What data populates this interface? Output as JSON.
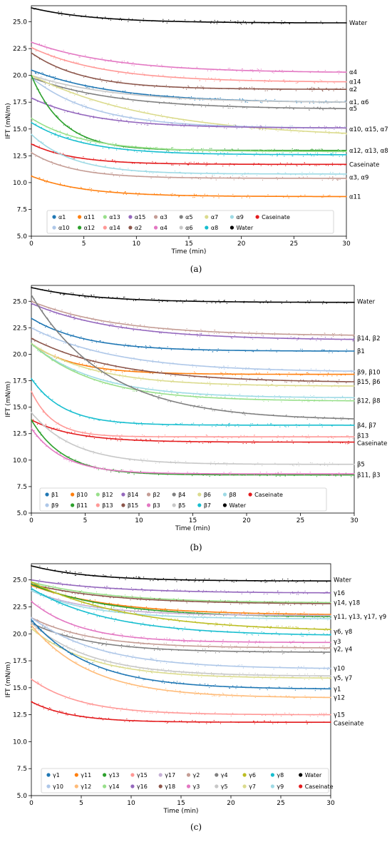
{
  "chart_data": [
    {
      "type": "scatter",
      "panel_label": "(a)",
      "xlabel": "Time (min)",
      "ylabel": "IFT (mN/m)",
      "xlim": [
        0,
        30
      ],
      "ylim": [
        5,
        26.5
      ],
      "xticks": [
        0,
        5,
        10,
        15,
        20,
        25,
        30
      ],
      "yticks": [
        5.0,
        7.5,
        10.0,
        12.5,
        15.0,
        17.5,
        20.0,
        22.5,
        25.0
      ],
      "grid": false,
      "legend_position": "lower-center",
      "legend": [
        {
          "name": "α1",
          "color": "#1f77b4"
        },
        {
          "name": "α10",
          "color": "#aec7e8"
        },
        {
          "name": "α11",
          "color": "#ff7f0e"
        },
        {
          "name": "α12",
          "color": "#2ca02c"
        },
        {
          "name": "α13",
          "color": "#98df8a"
        },
        {
          "name": "α14",
          "color": "#ff9896"
        },
        {
          "name": "α15",
          "color": "#9467bd"
        },
        {
          "name": "α2",
          "color": "#8c564b"
        },
        {
          "name": "α3",
          "color": "#c49c94"
        },
        {
          "name": "α4",
          "color": "#e377c2"
        },
        {
          "name": "α5",
          "color": "#7f7f7f"
        },
        {
          "name": "α6",
          "color": "#c7c7c7"
        },
        {
          "name": "α7",
          "color": "#dbdb8d"
        },
        {
          "name": "α8",
          "color": "#17becf"
        },
        {
          "name": "α9",
          "color": "#9edae5"
        },
        {
          "name": "Water",
          "color": "#000000"
        },
        {
          "name": "Caseinate",
          "color": "#e31a1c"
        }
      ],
      "series": [
        {
          "name": "Water",
          "color": "#000000",
          "y0": 26.3,
          "yend": 24.9,
          "tau": 6
        },
        {
          "name": "α4",
          "color": "#e377c2",
          "y0": 23.1,
          "yend": 20.3,
          "tau": 8
        },
        {
          "name": "α14",
          "color": "#ff9896",
          "y0": 22.6,
          "yend": 19.4,
          "tau": 7
        },
        {
          "name": "α2",
          "color": "#8c564b",
          "y0": 22.1,
          "yend": 18.7,
          "tau": 5
        },
        {
          "name": "α1",
          "color": "#1f77b4",
          "y0": 20.5,
          "yend": 17.5,
          "tau": 8
        },
        {
          "name": "α6",
          "color": "#c7c7c7",
          "y0": 20.0,
          "yend": 17.5,
          "tau": 8
        },
        {
          "name": "α5",
          "color": "#7f7f7f",
          "y0": 19.8,
          "yend": 16.9,
          "tau": 8
        },
        {
          "name": "α7",
          "color": "#dbdb8d",
          "y0": 20.0,
          "yend": 14.6,
          "tau": 12
        },
        {
          "name": "α10",
          "color": "#aec7e8",
          "y0": 19.8,
          "yend": 15.1,
          "tau": 6
        },
        {
          "name": "α15",
          "color": "#9467bd",
          "y0": 17.9,
          "yend": 15.1,
          "tau": 6
        },
        {
          "name": "α12",
          "color": "#2ca02c",
          "y0": 20.0,
          "yend": 13.0,
          "tau": 3
        },
        {
          "name": "α13",
          "color": "#98df8a",
          "y0": 16.0,
          "yend": 12.9,
          "tau": 5
        },
        {
          "name": "α8",
          "color": "#17becf",
          "y0": 15.6,
          "yend": 12.6,
          "tau": 5
        },
        {
          "name": "Caseinate",
          "color": "#e31a1c",
          "y0": 13.6,
          "yend": 11.7,
          "tau": 4
        },
        {
          "name": "α9",
          "color": "#9edae5",
          "y0": 14.5,
          "yend": 10.8,
          "tau": 4
        },
        {
          "name": "α3",
          "color": "#c49c94",
          "y0": 12.8,
          "yend": 10.4,
          "tau": 4
        },
        {
          "name": "α11",
          "color": "#ff7f0e",
          "y0": 10.6,
          "yend": 8.7,
          "tau": 5
        }
      ],
      "end_labels": [
        {
          "text": "Water",
          "y": 24.9
        },
        {
          "text": "α4",
          "y": 20.3
        },
        {
          "text": "α14",
          "y": 19.4
        },
        {
          "text": "α2",
          "y": 18.7
        },
        {
          "text": "α1, α6",
          "y": 17.5
        },
        {
          "text": "α5",
          "y": 16.9
        },
        {
          "text": "α10, α15, α7",
          "y": 15.0
        },
        {
          "text": "α12, α13, α8",
          "y": 13.0
        },
        {
          "text": "Caseinate",
          "y": 11.7
        },
        {
          "text": "α3, α9",
          "y": 10.5
        },
        {
          "text": "α11",
          "y": 8.7
        }
      ]
    },
    {
      "type": "scatter",
      "panel_label": "(b)",
      "xlabel": "Time (min)",
      "ylabel": "IFT (mN/m)",
      "xlim": [
        0,
        30
      ],
      "ylim": [
        5,
        26.5
      ],
      "xticks": [
        0,
        5,
        10,
        15,
        20,
        25,
        30
      ],
      "yticks": [
        5.0,
        7.5,
        10.0,
        12.5,
        15.0,
        17.5,
        20.0,
        22.5,
        25.0
      ],
      "grid": false,
      "legend_position": "lower-center",
      "legend": [
        {
          "name": "β1",
          "color": "#1f77b4"
        },
        {
          "name": "β9",
          "color": "#aec7e8"
        },
        {
          "name": "β10",
          "color": "#ff7f0e"
        },
        {
          "name": "β11",
          "color": "#2ca02c"
        },
        {
          "name": "β12",
          "color": "#98df8a"
        },
        {
          "name": "β13",
          "color": "#ff9896"
        },
        {
          "name": "β14",
          "color": "#9467bd"
        },
        {
          "name": "β15",
          "color": "#8c564b"
        },
        {
          "name": "β2",
          "color": "#c49c94"
        },
        {
          "name": "β3",
          "color": "#e377c2"
        },
        {
          "name": "β4",
          "color": "#7f7f7f"
        },
        {
          "name": "β5",
          "color": "#c7c7c7"
        },
        {
          "name": "β6",
          "color": "#dbdb8d"
        },
        {
          "name": "β7",
          "color": "#17becf"
        },
        {
          "name": "β8",
          "color": "#9edae5"
        },
        {
          "name": "Water",
          "color": "#000000"
        },
        {
          "name": "Caseinate",
          "color": "#e31a1c"
        }
      ],
      "series": [
        {
          "name": "Water",
          "color": "#000000",
          "y0": 26.3,
          "yend": 24.9,
          "tau": 6
        },
        {
          "name": "β2",
          "color": "#c49c94",
          "y0": 25.0,
          "yend": 21.8,
          "tau": 8
        },
        {
          "name": "β14",
          "color": "#9467bd",
          "y0": 24.8,
          "yend": 21.4,
          "tau": 8
        },
        {
          "name": "β1",
          "color": "#1f77b4",
          "y0": 23.4,
          "yend": 20.3,
          "tau": 5
        },
        {
          "name": "β9",
          "color": "#aec7e8",
          "y0": 22.5,
          "yend": 18.4,
          "tau": 8
        },
        {
          "name": "β10",
          "color": "#ff7f0e",
          "y0": 21.0,
          "yend": 18.1,
          "tau": 4
        },
        {
          "name": "β15",
          "color": "#8c564b",
          "y0": 21.5,
          "yend": 17.4,
          "tau": 8
        },
        {
          "name": "β6",
          "color": "#dbdb8d",
          "y0": 21.0,
          "yend": 17.0,
          "tau": 6
        },
        {
          "name": "β8",
          "color": "#9edae5",
          "y0": 21.0,
          "yend": 15.9,
          "tau": 6
        },
        {
          "name": "β12",
          "color": "#98df8a",
          "y0": 21.0,
          "yend": 15.6,
          "tau": 6
        },
        {
          "name": "β4",
          "color": "#7f7f7f",
          "y0": 25.6,
          "yend": 13.9,
          "tau": 7
        },
        {
          "name": "β7",
          "color": "#17becf",
          "y0": 17.7,
          "yend": 13.3,
          "tau": 3
        },
        {
          "name": "β13",
          "color": "#ff9896",
          "y0": 16.5,
          "yend": 12.2,
          "tau": 2
        },
        {
          "name": "Caseinate",
          "color": "#e31a1c",
          "y0": 13.8,
          "yend": 11.7,
          "tau": 4
        },
        {
          "name": "β5",
          "color": "#c7c7c7",
          "y0": 14.5,
          "yend": 9.6,
          "tau": 4
        },
        {
          "name": "β11",
          "color": "#2ca02c",
          "y0": 13.8,
          "yend": 8.6,
          "tau": 3
        },
        {
          "name": "β3",
          "color": "#e377c2",
          "y0": 13.0,
          "yend": 8.7,
          "tau": 3
        }
      ],
      "end_labels": [
        {
          "text": "Water",
          "y": 25.0
        },
        {
          "text": "β14, β2",
          "y": 21.5
        },
        {
          "text": "β1",
          "y": 20.3
        },
        {
          "text": "β9, β10",
          "y": 18.3
        },
        {
          "text": "β15, β6",
          "y": 17.4
        },
        {
          "text": "β12, β8",
          "y": 15.6
        },
        {
          "text": "β4, β7",
          "y": 13.3
        },
        {
          "text": "β13",
          "y": 12.3
        },
        {
          "text": "Caseinate",
          "y": 11.6
        },
        {
          "text": "β5",
          "y": 9.6
        },
        {
          "text": "β11, β3",
          "y": 8.6
        }
      ]
    },
    {
      "type": "scatter",
      "panel_label": "(c)",
      "xlabel": "Time (min)",
      "ylabel": "IFT (mN/m)",
      "xlim": [
        0,
        30
      ],
      "ylim": [
        5,
        26.5
      ],
      "xticks": [
        0,
        5,
        10,
        15,
        20,
        25,
        30
      ],
      "yticks": [
        5.0,
        7.5,
        10.0,
        12.5,
        15.0,
        17.5,
        20.0,
        22.5,
        25.0
      ],
      "grid": false,
      "legend_position": "lower-center",
      "legend": [
        {
          "name": "γ1",
          "color": "#1f77b4"
        },
        {
          "name": "γ10",
          "color": "#aec7e8"
        },
        {
          "name": "γ11",
          "color": "#ff7f0e"
        },
        {
          "name": "γ12",
          "color": "#ffbb78"
        },
        {
          "name": "γ13",
          "color": "#2ca02c"
        },
        {
          "name": "γ14",
          "color": "#98df8a"
        },
        {
          "name": "γ15",
          "color": "#ff9896"
        },
        {
          "name": "γ16",
          "color": "#9467bd"
        },
        {
          "name": "γ17",
          "color": "#c5b0d5"
        },
        {
          "name": "γ18",
          "color": "#8c564b"
        },
        {
          "name": "γ2",
          "color": "#c49c94"
        },
        {
          "name": "γ3",
          "color": "#e377c2"
        },
        {
          "name": "γ4",
          "color": "#7f7f7f"
        },
        {
          "name": "γ5",
          "color": "#c7c7c7"
        },
        {
          "name": "γ6",
          "color": "#bcbd22"
        },
        {
          "name": "γ7",
          "color": "#dbdb8d"
        },
        {
          "name": "γ8",
          "color": "#17becf"
        },
        {
          "name": "γ9",
          "color": "#9edae5"
        },
        {
          "name": "Water",
          "color": "#000000"
        },
        {
          "name": "Caseinate",
          "color": "#e31a1c"
        }
      ],
      "series": [
        {
          "name": "Water",
          "color": "#000000",
          "y0": 26.3,
          "yend": 24.9,
          "tau": 6
        },
        {
          "name": "γ16",
          "color": "#9467bd",
          "y0": 25.0,
          "yend": 23.8,
          "tau": 8
        },
        {
          "name": "γ14",
          "color": "#98df8a",
          "y0": 24.8,
          "yend": 22.9,
          "tau": 8
        },
        {
          "name": "γ18",
          "color": "#8c564b",
          "y0": 24.6,
          "yend": 22.8,
          "tau": 8
        },
        {
          "name": "γ11",
          "color": "#ff7f0e",
          "y0": 24.5,
          "yend": 21.8,
          "tau": 8
        },
        {
          "name": "γ13",
          "color": "#2ca02c",
          "y0": 24.6,
          "yend": 21.6,
          "tau": 8
        },
        {
          "name": "γ17",
          "color": "#c5b0d5",
          "y0": 24.0,
          "yend": 21.7,
          "tau": 6
        },
        {
          "name": "γ9",
          "color": "#9edae5",
          "y0": 24.0,
          "yend": 21.4,
          "tau": 6
        },
        {
          "name": "γ6",
          "color": "#bcbd22",
          "y0": 24.8,
          "yend": 20.4,
          "tau": 10
        },
        {
          "name": "γ8",
          "color": "#17becf",
          "y0": 24.2,
          "yend": 19.9,
          "tau": 8
        },
        {
          "name": "γ3",
          "color": "#e377c2",
          "y0": 23.0,
          "yend": 19.2,
          "tau": 5
        },
        {
          "name": "γ2",
          "color": "#c49c94",
          "y0": 21.5,
          "yend": 18.7,
          "tau": 6
        },
        {
          "name": "γ4",
          "color": "#7f7f7f",
          "y0": 21.0,
          "yend": 18.3,
          "tau": 6
        },
        {
          "name": "γ10",
          "color": "#aec7e8",
          "y0": 21.5,
          "yend": 16.8,
          "tau": 7
        },
        {
          "name": "γ5",
          "color": "#c7c7c7",
          "y0": 21.0,
          "yend": 16.1,
          "tau": 6
        },
        {
          "name": "γ7",
          "color": "#dbdb8d",
          "y0": 20.5,
          "yend": 15.9,
          "tau": 6
        },
        {
          "name": "γ1",
          "color": "#1f77b4",
          "y0": 21.3,
          "yend": 14.9,
          "tau": 6
        },
        {
          "name": "γ12",
          "color": "#ffbb78",
          "y0": 20.8,
          "yend": 14.1,
          "tau": 6
        },
        {
          "name": "γ15",
          "color": "#ff9896",
          "y0": 15.8,
          "yend": 12.5,
          "tau": 5
        },
        {
          "name": "Caseinate",
          "color": "#e31a1c",
          "y0": 13.7,
          "yend": 11.8,
          "tau": 4
        }
      ],
      "end_labels": [
        {
          "text": "Water",
          "y": 25.0
        },
        {
          "text": "γ16",
          "y": 23.8
        },
        {
          "text": "γ14, γ18",
          "y": 22.9
        },
        {
          "text": "γ11, γ13, γ17, γ9",
          "y": 21.6
        },
        {
          "text": "γ6, γ8",
          "y": 20.2
        },
        {
          "text": "γ3",
          "y": 19.3
        },
        {
          "text": "γ2, γ4",
          "y": 18.6
        },
        {
          "text": "γ10",
          "y": 16.8
        },
        {
          "text": "γ5, γ7",
          "y": 15.9
        },
        {
          "text": "γ1",
          "y": 14.9
        },
        {
          "text": "γ12",
          "y": 14.1
        },
        {
          "text": "γ15",
          "y": 12.5
        },
        {
          "text": "Caseinate",
          "y": 11.7
        }
      ]
    }
  ]
}
